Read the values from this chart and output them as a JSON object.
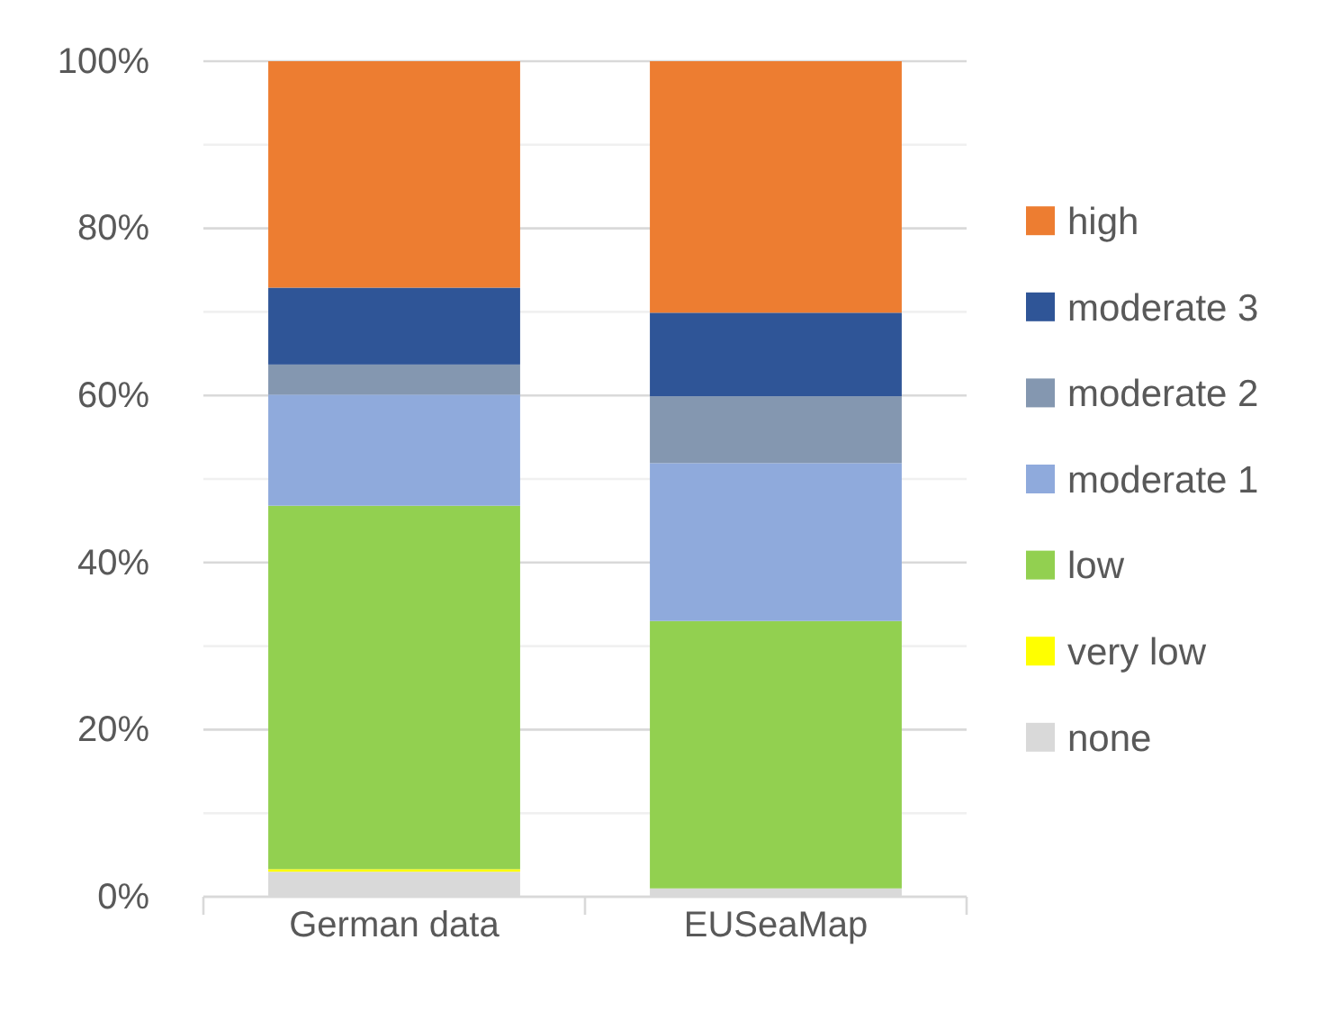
{
  "chart_data": {
    "type": "bar",
    "stacked": true,
    "categories": [
      "German data",
      "EUSeaMap"
    ],
    "series": [
      {
        "name": "none",
        "color": "#d9d9d9",
        "values": [
          3.0,
          1.0
        ]
      },
      {
        "name": "very low",
        "color": "#ffff00",
        "values": [
          0.3,
          null
        ]
      },
      {
        "name": "low",
        "color": "#92d050",
        "values": [
          43.5,
          32.0
        ]
      },
      {
        "name": "moderate 1",
        "color": "#8faadc",
        "values": [
          13.3,
          18.9
        ]
      },
      {
        "name": "moderate 2",
        "color": "#8497b0",
        "values": [
          3.6,
          8.0
        ]
      },
      {
        "name": "moderate 3",
        "color": "#2f5597",
        "values": [
          9.2,
          10.0
        ]
      },
      {
        "name": "high",
        "color": "#ed7d31",
        "values": [
          27.1,
          30.1
        ]
      }
    ],
    "ylim": [
      0,
      100
    ],
    "yticks": [
      {
        "value": 0,
        "label": "0%"
      },
      {
        "value": 10,
        "label": null
      },
      {
        "value": 20,
        "label": "20%"
      },
      {
        "value": 30,
        "label": null
      },
      {
        "value": 40,
        "label": "40%"
      },
      {
        "value": 50,
        "label": null
      },
      {
        "value": 60,
        "label": "60%"
      },
      {
        "value": 70,
        "label": null
      },
      {
        "value": 80,
        "label": "80%"
      },
      {
        "value": 90,
        "label": null
      },
      {
        "value": 100,
        "label": "100%"
      }
    ],
    "grid": true,
    "legend": "right"
  }
}
